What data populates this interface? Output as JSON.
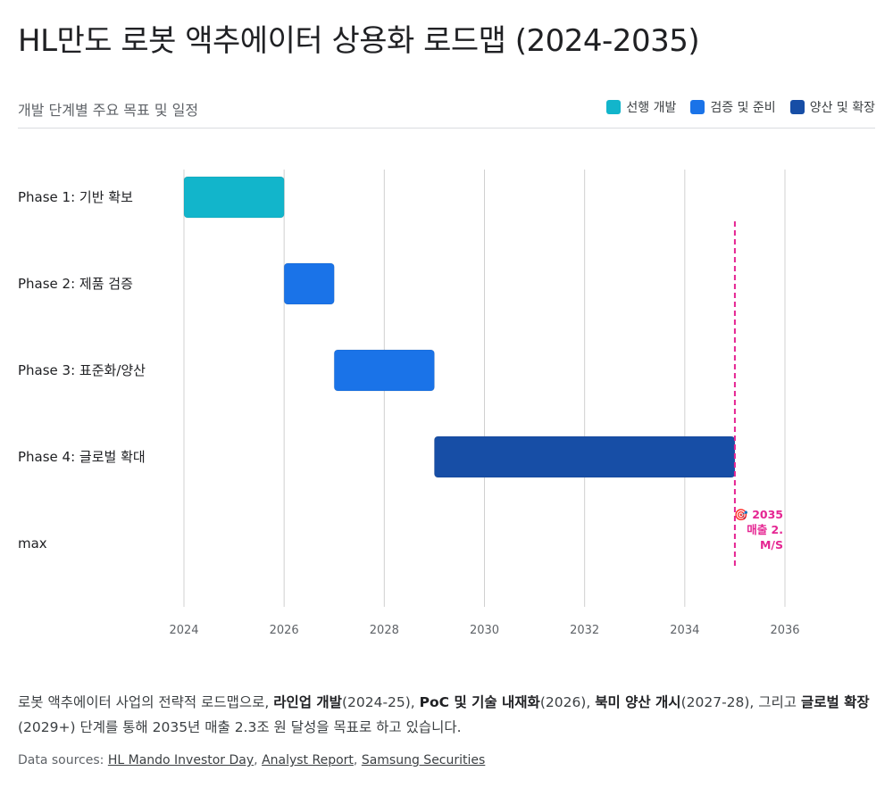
{
  "title": "HL만도 로봇 액추에이터 상용화 로드맵 (2024-2035)",
  "subtitle": "개발 단계별 주요 목표 및 일정",
  "legend": [
    {
      "label": "선행 개발",
      "color": "#12b5cb"
    },
    {
      "label": "검증 및 준비",
      "color": "#1a73e8"
    },
    {
      "label": "양산 및 확장",
      "color": "#174ea6"
    }
  ],
  "chart_data": {
    "type": "bar",
    "orientation": "horizontal-gantt",
    "categories": [
      "Phase 1: 기반 확보",
      "Phase 2: 제품 검증",
      "Phase 3: 표준화/양산",
      "Phase 4: 글로벌 확대",
      "max"
    ],
    "series": [
      {
        "name": "선행 개발",
        "color": "#12b5cb",
        "bars": [
          {
            "category": "Phase 1: 기반 확보",
            "start": 2024,
            "end": 2026
          }
        ]
      },
      {
        "name": "검증 및 준비",
        "color": "#1a73e8",
        "bars": [
          {
            "category": "Phase 2: 제품 검증",
            "start": 2026,
            "end": 2027
          },
          {
            "category": "Phase 3: 표준화/양산",
            "start": 2027,
            "end": 2029
          }
        ]
      },
      {
        "name": "양산 및 확장",
        "color": "#174ea6",
        "bars": [
          {
            "category": "Phase 4: 글로벌 확대",
            "start": 2029,
            "end": 2035
          }
        ]
      }
    ],
    "xlim": [
      2024,
      2036
    ],
    "xticks": [
      "2024",
      "2026",
      "2028",
      "2030",
      "2032",
      "2034",
      "2036"
    ],
    "grid": true,
    "legend_position": "top-right",
    "annotation": {
      "x": 2035,
      "color": "#e52592",
      "lines": [
        "🎯 2035",
        "매출 2.",
        "M/S"
      ]
    }
  },
  "description": {
    "p1": "로봇 액추에이터 사업의 전략적 로드맵으로, ",
    "b1": "라인업 개발",
    "p2": "(2024-25), ",
    "b2": "PoC 및 기술 내재화",
    "p3": "(2026), ",
    "b3": "북미 양산 개시",
    "p4": "(2027-28), 그리고 ",
    "b4": "글로벌 확장",
    "p5": "(2029+) 단계를 통해 2035년 매출 2.3조 원 달성을 목표로 하고 있습니다."
  },
  "sources": {
    "label": "Data sources:",
    "links": [
      "HL Mando Investor Day",
      "Analyst Report",
      "Samsung Securities"
    ]
  }
}
